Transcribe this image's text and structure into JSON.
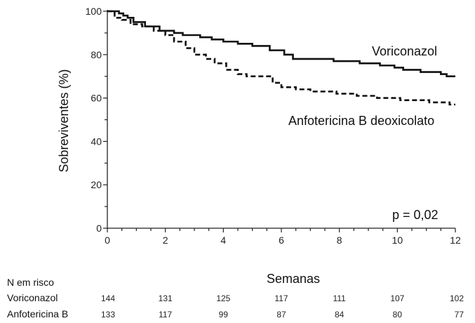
{
  "chart_data": {
    "type": "line",
    "title": "",
    "xlabel": "Semanas",
    "ylabel": "Sobreviventes (%)",
    "xlim": [
      0,
      12
    ],
    "ylim": [
      0,
      100
    ],
    "xticks": [
      "0",
      "2",
      "4",
      "6",
      "8",
      "10",
      "12"
    ],
    "yticks": [
      "0",
      "20",
      "40",
      "60",
      "80",
      "100"
    ],
    "grid": false,
    "annotation": "p = 0,02",
    "series": [
      {
        "name": "Voriconazol",
        "style": "solid",
        "points": [
          [
            0,
            100
          ],
          [
            0.35,
            100
          ],
          [
            0.4,
            99
          ],
          [
            0.55,
            98
          ],
          [
            0.7,
            97
          ],
          [
            0.9,
            95
          ],
          [
            1.3,
            93
          ],
          [
            1.8,
            91
          ],
          [
            2.3,
            90
          ],
          [
            2.6,
            89
          ],
          [
            3.2,
            88
          ],
          [
            3.6,
            87
          ],
          [
            4.0,
            86
          ],
          [
            4.5,
            85
          ],
          [
            5.0,
            84
          ],
          [
            5.6,
            82
          ],
          [
            6.1,
            80
          ],
          [
            6.4,
            78
          ],
          [
            7.2,
            78
          ],
          [
            7.8,
            77
          ],
          [
            8.7,
            76
          ],
          [
            9.4,
            75
          ],
          [
            9.9,
            74
          ],
          [
            10.2,
            73
          ],
          [
            10.8,
            72
          ],
          [
            11.5,
            71
          ],
          [
            11.7,
            70
          ],
          [
            12,
            70
          ]
        ]
      },
      {
        "name": "Anfotericina B deoxicolato",
        "style": "dashed",
        "points": [
          [
            0,
            100
          ],
          [
            0.25,
            97
          ],
          [
            0.5,
            96
          ],
          [
            0.8,
            94
          ],
          [
            1.2,
            93
          ],
          [
            1.6,
            91
          ],
          [
            2.0,
            89
          ],
          [
            2.3,
            86
          ],
          [
            2.7,
            83
          ],
          [
            3.0,
            80
          ],
          [
            3.4,
            78
          ],
          [
            3.7,
            76
          ],
          [
            4.1,
            73
          ],
          [
            4.5,
            71
          ],
          [
            4.8,
            70
          ],
          [
            5.7,
            67
          ],
          [
            6.0,
            65
          ],
          [
            6.5,
            64
          ],
          [
            7.0,
            63
          ],
          [
            7.9,
            62
          ],
          [
            8.6,
            61
          ],
          [
            9.3,
            60
          ],
          [
            10.1,
            59
          ],
          [
            11.1,
            58
          ],
          [
            11.8,
            57
          ],
          [
            12,
            57
          ]
        ]
      }
    ],
    "risk_table": {
      "header": "N em risco",
      "rows": [
        {
          "name": "Voriconazol",
          "values": [
            "144",
            "131",
            "125",
            "117",
            "111",
            "107",
            "102"
          ]
        },
        {
          "name": "Anfotericina B",
          "values": [
            "133",
            "117",
            "99",
            "87",
            "84",
            "80",
            "77"
          ]
        }
      ]
    }
  },
  "colors": {
    "line": "#111111",
    "axis": "#222222"
  }
}
